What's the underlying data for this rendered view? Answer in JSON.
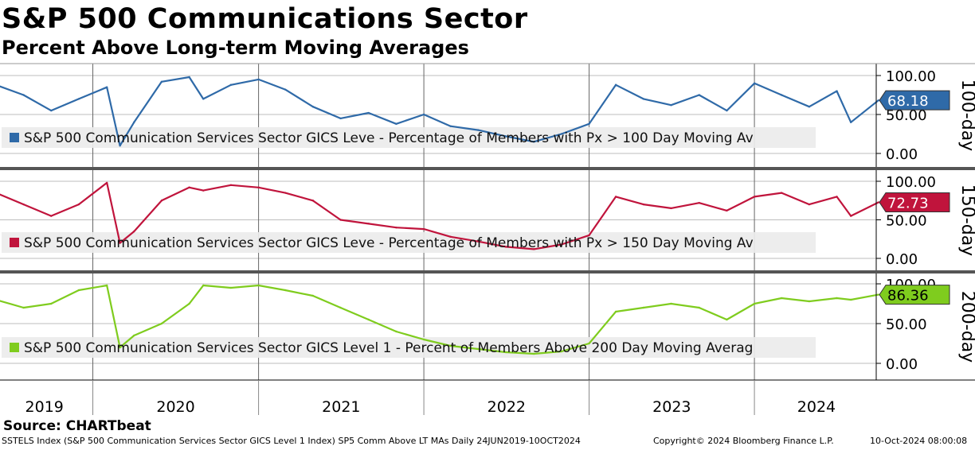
{
  "header": {
    "title": "S&P 500 Communications Sector",
    "subtitle": "Percent Above Long-term Moving Averages"
  },
  "source": "Source: CHARTbeat",
  "footer": {
    "index_info": "SSTELS Index (S&P 500 Communication Services Sector GICS Level 1 Index) SP5 Comm Above LT MAs  Daily 24JUN2019-10OCT2024",
    "copyright": "Copyright© 2024 Bloomberg Finance L.P.",
    "timestamp": "10-Oct-2024 08:00:08"
  },
  "colors": {
    "panel_100": "#2f6aa8",
    "panel_150": "#c0143c",
    "panel_200": "#7fcc1e",
    "legend_bg": "#ececec",
    "separator": "#555555"
  },
  "chart_data": [
    {
      "type": "line",
      "panel_label": "100-day",
      "legend": "S&P 500 Communication Services Sector GICS Leve - Percentage of Members with Px > 100 Day Moving Av",
      "last_value": 68.18,
      "last_value_label": "68.18",
      "y_ticks": [
        "100.00",
        "50.00",
        "0.00"
      ],
      "ylim": [
        0,
        100
      ],
      "x_ticks": [
        "2019",
        "2020",
        "2021",
        "2022",
        "2023",
        "2024"
      ],
      "series": [
        {
          "x": [
            "2019-06",
            "2019-08",
            "2019-10",
            "2019-12",
            "2020-02",
            "2020-03",
            "2020-04",
            "2020-06",
            "2020-08",
            "2020-09",
            "2020-11",
            "2021-01",
            "2021-03",
            "2021-05",
            "2021-07",
            "2021-09",
            "2021-11",
            "2022-01",
            "2022-03",
            "2022-05",
            "2022-07",
            "2022-09",
            "2022-11",
            "2023-01",
            "2023-03",
            "2023-05",
            "2023-07",
            "2023-09",
            "2023-11",
            "2024-01",
            "2024-03",
            "2024-05",
            "2024-07",
            "2024-08",
            "2024-10"
          ],
          "values": [
            88,
            75,
            55,
            70,
            85,
            10,
            40,
            92,
            98,
            70,
            88,
            95,
            82,
            60,
            45,
            52,
            38,
            50,
            35,
            30,
            22,
            15,
            25,
            38,
            88,
            70,
            62,
            75,
            55,
            90,
            75,
            60,
            80,
            40,
            68.18
          ]
        }
      ]
    },
    {
      "type": "line",
      "panel_label": "150-day",
      "legend": "S&P 500 Communication Services Sector GICS Leve - Percentage of Members with Px > 150 Day Moving Av",
      "last_value": 72.73,
      "last_value_label": "72.73",
      "y_ticks": [
        "100.00",
        "50.00",
        "0.00"
      ],
      "ylim": [
        0,
        100
      ],
      "x_ticks": [
        "2019",
        "2020",
        "2021",
        "2022",
        "2023",
        "2024"
      ],
      "series": [
        {
          "x": [
            "2019-06",
            "2019-08",
            "2019-10",
            "2019-12",
            "2020-02",
            "2020-03",
            "2020-04",
            "2020-06",
            "2020-08",
            "2020-09",
            "2020-11",
            "2021-01",
            "2021-03",
            "2021-05",
            "2021-07",
            "2021-09",
            "2021-11",
            "2022-01",
            "2022-03",
            "2022-05",
            "2022-07",
            "2022-09",
            "2022-11",
            "2023-01",
            "2023-03",
            "2023-05",
            "2023-07",
            "2023-09",
            "2023-11",
            "2024-01",
            "2024-03",
            "2024-05",
            "2024-07",
            "2024-08",
            "2024-10"
          ],
          "values": [
            85,
            70,
            55,
            70,
            98,
            20,
            35,
            75,
            92,
            88,
            95,
            92,
            85,
            75,
            50,
            45,
            40,
            38,
            28,
            22,
            15,
            12,
            18,
            30,
            80,
            70,
            65,
            72,
            62,
            80,
            85,
            70,
            80,
            55,
            72.73
          ]
        }
      ]
    },
    {
      "type": "line",
      "panel_label": "200-day",
      "legend": "S&P 500 Communication Services Sector GICS Level 1 - Percent of Members Above 200 Day Moving Averag",
      "last_value": 86.36,
      "last_value_label": "86.36",
      "y_ticks": [
        "100.00",
        "50.00",
        "0.00"
      ],
      "ylim": [
        0,
        100
      ],
      "x_ticks": [
        "2019",
        "2020",
        "2021",
        "2022",
        "2023",
        "2024"
      ],
      "series": [
        {
          "x": [
            "2019-06",
            "2019-08",
            "2019-10",
            "2019-12",
            "2020-02",
            "2020-03",
            "2020-04",
            "2020-06",
            "2020-08",
            "2020-09",
            "2020-11",
            "2021-01",
            "2021-03",
            "2021-05",
            "2021-07",
            "2021-09",
            "2021-11",
            "2022-01",
            "2022-03",
            "2022-05",
            "2022-07",
            "2022-09",
            "2022-11",
            "2023-01",
            "2023-03",
            "2023-05",
            "2023-07",
            "2023-09",
            "2023-11",
            "2024-01",
            "2024-03",
            "2024-05",
            "2024-07",
            "2024-08",
            "2024-10"
          ],
          "values": [
            80,
            70,
            75,
            92,
            98,
            20,
            35,
            50,
            75,
            98,
            95,
            98,
            92,
            85,
            70,
            55,
            40,
            30,
            22,
            18,
            14,
            12,
            15,
            25,
            65,
            70,
            75,
            70,
            55,
            75,
            82,
            78,
            82,
            80,
            86.36
          ]
        }
      ]
    }
  ]
}
